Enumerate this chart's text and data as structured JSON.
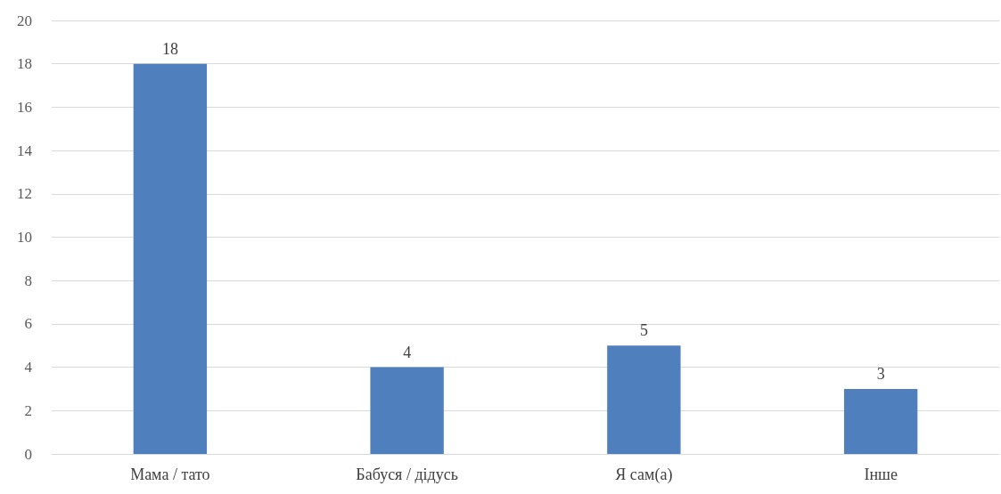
{
  "chart_data": {
    "type": "bar",
    "categories": [
      "Мама / тато",
      "Бабуся / дідусь",
      "Я сам(а)",
      "Інше"
    ],
    "values": [
      18,
      4,
      5,
      3
    ],
    "color": "#4f7fbc",
    "ylim": [
      0,
      20
    ],
    "yticks": [
      0,
      2,
      4,
      6,
      8,
      10,
      12,
      14,
      16,
      18,
      20
    ],
    "grid": "y",
    "data_labels": true
  }
}
